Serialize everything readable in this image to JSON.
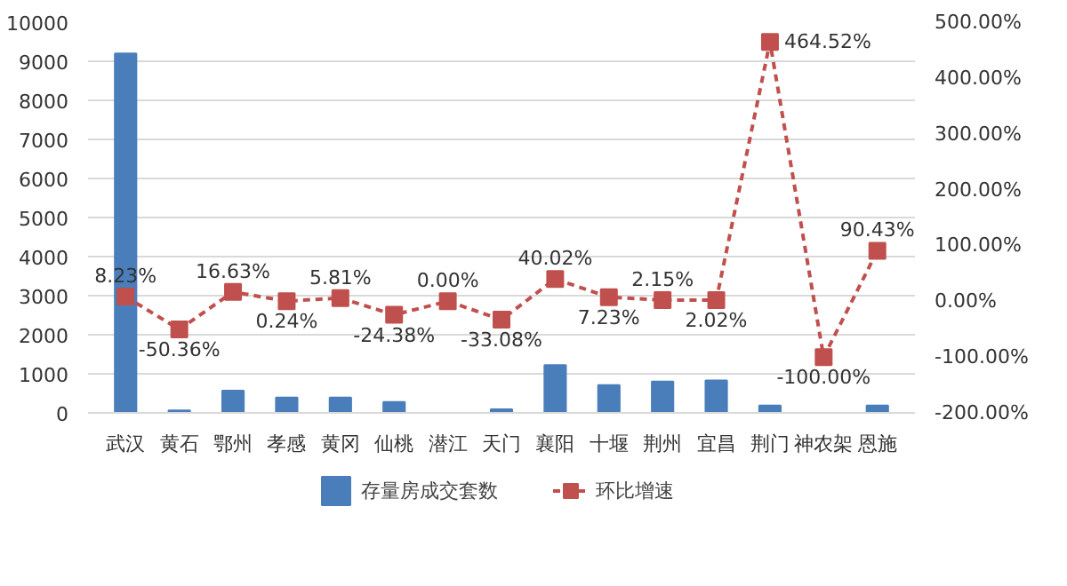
{
  "chart_data": {
    "type": "bar",
    "categories": [
      "武汉",
      "黄石",
      "鄂州",
      "孝感",
      "黄冈",
      "仙桃",
      "潜江",
      "天门",
      "襄阳",
      "十堰",
      "荆州",
      "宜昌",
      "荆门",
      "神农架",
      "恩施"
    ],
    "series": [
      {
        "name": "存量房成交套数",
        "color": "#4a7ebb",
        "values": [
          9200,
          60,
          570,
          390,
          390,
          280,
          0,
          90,
          1220,
          710,
          800,
          830,
          190,
          0,
          190
        ]
      },
      {
        "name": "环比增速",
        "type": "line",
        "axis": "y2",
        "color": "#c0504d",
        "line_style": "dashed",
        "marker": "square",
        "values": [
          8.23,
          -50.36,
          16.63,
          0.24,
          5.81,
          -24.38,
          0.0,
          -33.08,
          40.02,
          7.23,
          2.15,
          2.02,
          464.52,
          -100.0,
          90.43
        ],
        "value_labels": [
          "8.23%",
          "-50.36%",
          "16.63%",
          "0.24%",
          "5.81%",
          "-24.38%",
          "0.00%",
          "-33.08%",
          "40.02%",
          "7.23%",
          "2.15%",
          "2.02%",
          "464.52%",
          "-100.00%",
          "90.43%"
        ]
      }
    ],
    "ylim": [
      0,
      10000
    ],
    "yticks": [
      0,
      1000,
      2000,
      3000,
      4000,
      5000,
      6000,
      7000,
      8000,
      9000,
      10000
    ],
    "y2lim": [
      -200,
      500
    ],
    "y2ticks": [
      {
        "value": -200,
        "label": "-200.00%"
      },
      {
        "value": -100,
        "label": "-100.00%"
      },
      {
        "value": 0,
        "label": "0.00%"
      },
      {
        "value": 100,
        "label": "100.00%"
      },
      {
        "value": 200,
        "label": "200.00%"
      },
      {
        "value": 300,
        "label": "300.00%"
      },
      {
        "value": 400,
        "label": "400.00%"
      },
      {
        "value": 500,
        "label": "500.00%"
      }
    ],
    "grid": "y",
    "legend": "bottom"
  }
}
